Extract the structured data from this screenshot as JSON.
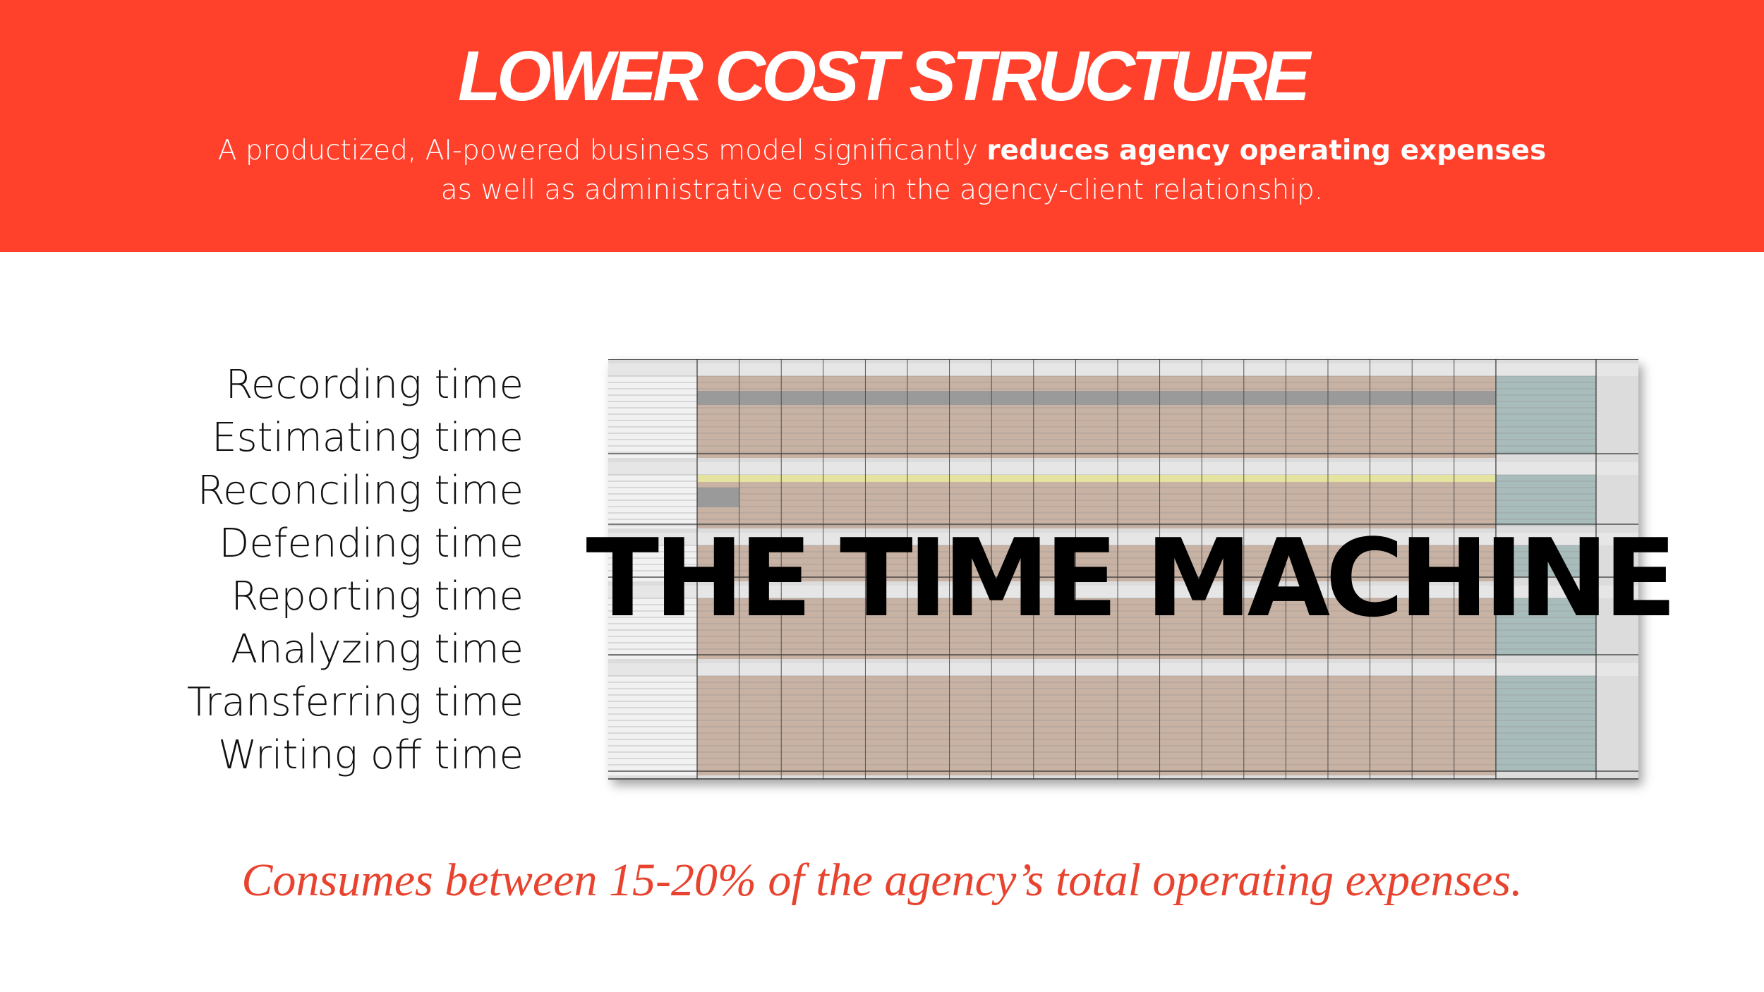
{
  "header": {
    "title": "LOWER COST STRUCTURE",
    "subtitle_part1": "A productized, AI-powered business model significantly ",
    "subtitle_bold": "reduces agency operating expenses",
    "subtitle_line2": "as well as administrative costs in the agency-client relationship."
  },
  "time_items": [
    "Recording time",
    "Estimating time",
    "Reconciling time",
    "Defending time",
    "Reporting time",
    "Analyzing time",
    "Transferring time",
    "Writing off time"
  ],
  "overlay_title": "THE TIME MACHINE",
  "footer_text": "Consumes between 15-20% of the agency’s total operating expenses.",
  "colors": {
    "brand_red": "#ff412c",
    "footer_red": "#e8432e",
    "sheet_tan": "#c8b2a4",
    "sheet_teal": "#a9bcbc"
  }
}
